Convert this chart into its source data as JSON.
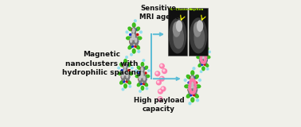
{
  "left_text": "Magnetic\nnanoclusters with\nhydrophilic spacing",
  "top_text": "Sensitive\nMRI agent",
  "bottom_text": "High payload\ncapacity",
  "bg_color": "#f0f0ea",
  "text_color": "#111111",
  "arrow_color": "#5bbcd6",
  "sphere_dark": "#787878",
  "sphere_light": "#d8d8d8",
  "green_color": "#33bb11",
  "red_color": "#cc1111",
  "blue_color": "#1133cc",
  "pink_color": "#ff77aa",
  "cyan_color": "#88ddee",
  "mri_bg": "#101010",
  "mri_gray1": "#404040",
  "mri_gray2": "#686868",
  "mri_gray3": "#909090",
  "mri_white": "#cccccc"
}
